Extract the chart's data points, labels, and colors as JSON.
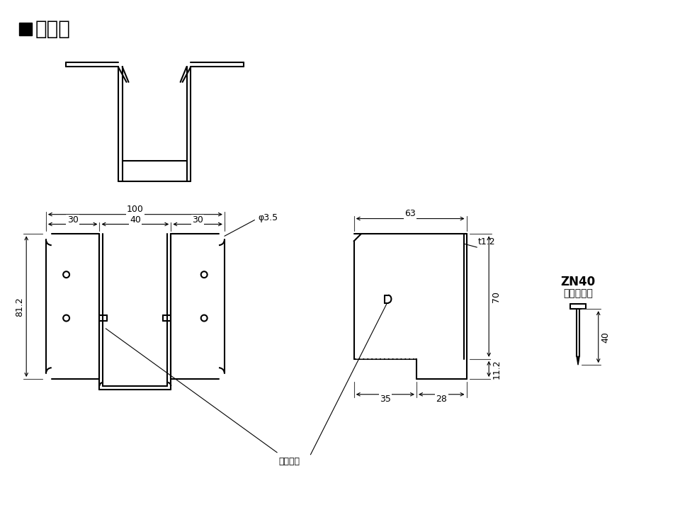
{
  "title": "■仕様図",
  "bg_color": "#ffffff",
  "line_color": "#000000",
  "annotations": {
    "phi35": "φ3.5",
    "t12": "t1.2",
    "dim100": "100",
    "dim30a": "30",
    "dim40": "40",
    "dim30b": "30",
    "dim81_2": "81.2",
    "dim63": "63",
    "dim70": "70",
    "dim35": "35",
    "dim28": "28",
    "dim11_2": "11.2",
    "guide": "ガイド穴",
    "zn40_label": "ZN40",
    "zn40_sub": "（別売品）",
    "zn40_dim": "40"
  }
}
